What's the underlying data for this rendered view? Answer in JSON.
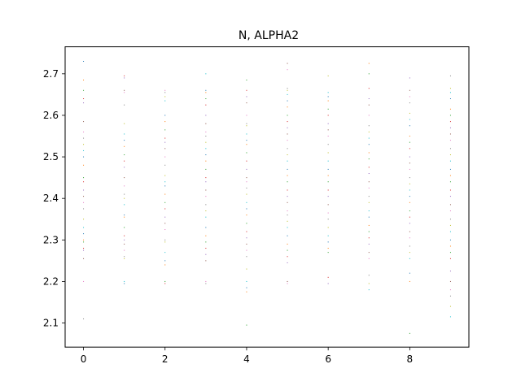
{
  "chart_data": {
    "type": "scatter",
    "title": "N, ALPHA2",
    "xlabel": "",
    "ylabel": "",
    "xlim": [
      -0.45,
      9.45
    ],
    "ylim": [
      2.042,
      2.765
    ],
    "xticks": [
      0,
      2,
      4,
      6,
      8
    ],
    "xtick_labels": [
      "0",
      "2",
      "4",
      "6",
      "8"
    ],
    "yticks": [
      2.1,
      2.2,
      2.3,
      2.4,
      2.5,
      2.6,
      2.7
    ],
    "ytick_labels": [
      "2.1",
      "2.2",
      "2.3",
      "2.4",
      "2.5",
      "2.6",
      "2.7"
    ],
    "grid": false,
    "legend": "none",
    "marker": "pixel",
    "colors": [
      "#1f77b4",
      "#ff7f0e",
      "#2ca02c",
      "#d62728",
      "#9467bd",
      "#8c564b",
      "#e377c2",
      "#7f7f7f",
      "#bcbd22",
      "#17becf"
    ],
    "columns": [
      {
        "x": 0,
        "y": [
          2.73,
          2.685,
          2.66,
          2.64,
          2.63,
          2.585,
          2.56,
          2.545,
          2.53,
          2.515,
          2.5,
          2.48,
          2.45,
          2.44,
          2.42,
          2.405,
          2.39,
          2.375,
          2.35,
          2.33,
          2.315,
          2.3,
          2.295,
          2.28,
          2.275,
          2.255,
          2.2,
          2.11
        ]
      },
      {
        "x": 1,
        "y": [
          2.695,
          2.69,
          2.66,
          2.655,
          2.625,
          2.58,
          2.555,
          2.54,
          2.525,
          2.505,
          2.49,
          2.475,
          2.45,
          2.43,
          2.41,
          2.4,
          2.385,
          2.36,
          2.355,
          2.33,
          2.31,
          2.3,
          2.29,
          2.275,
          2.26,
          2.255,
          2.2,
          2.195
        ]
      },
      {
        "x": 2,
        "y": [
          2.66,
          2.655,
          2.645,
          2.635,
          2.6,
          2.585,
          2.565,
          2.545,
          2.535,
          2.52,
          2.5,
          2.48,
          2.455,
          2.44,
          2.43,
          2.41,
          2.39,
          2.375,
          2.355,
          2.34,
          2.325,
          2.3,
          2.295,
          2.27,
          2.25,
          2.24,
          2.2,
          2.195
        ]
      },
      {
        "x": 3,
        "y": [
          2.7,
          2.66,
          2.655,
          2.64,
          2.625,
          2.6,
          2.58,
          2.56,
          2.55,
          2.535,
          2.52,
          2.505,
          2.49,
          2.47,
          2.45,
          2.44,
          2.42,
          2.405,
          2.385,
          2.37,
          2.355,
          2.33,
          2.31,
          2.295,
          2.28,
          2.265,
          2.25,
          2.2,
          2.195
        ]
      },
      {
        "x": 4,
        "y": [
          2.685,
          2.66,
          2.645,
          2.63,
          2.6,
          2.58,
          2.575,
          2.555,
          2.54,
          2.53,
          2.51,
          2.49,
          2.47,
          2.45,
          2.44,
          2.425,
          2.41,
          2.39,
          2.375,
          2.36,
          2.34,
          2.32,
          2.305,
          2.29,
          2.275,
          2.26,
          2.23,
          2.2,
          2.185,
          2.175,
          2.095
        ]
      },
      {
        "x": 5,
        "y": [
          2.725,
          2.71,
          2.665,
          2.66,
          2.65,
          2.635,
          2.62,
          2.6,
          2.585,
          2.57,
          2.555,
          2.54,
          2.52,
          2.505,
          2.49,
          2.47,
          2.455,
          2.44,
          2.42,
          2.405,
          2.39,
          2.37,
          2.36,
          2.345,
          2.33,
          2.31,
          2.29,
          2.275,
          2.26,
          2.245,
          2.2,
          2.195
        ]
      },
      {
        "x": 6,
        "y": [
          2.695,
          2.655,
          2.645,
          2.635,
          2.615,
          2.6,
          2.58,
          2.565,
          2.55,
          2.53,
          2.51,
          2.49,
          2.47,
          2.455,
          2.44,
          2.42,
          2.405,
          2.385,
          2.365,
          2.35,
          2.33,
          2.31,
          2.295,
          2.28,
          2.27,
          2.21,
          2.195
        ]
      },
      {
        "x": 7,
        "y": [
          2.725,
          2.7,
          2.665,
          2.64,
          2.625,
          2.6,
          2.575,
          2.56,
          2.545,
          2.53,
          2.51,
          2.495,
          2.475,
          2.46,
          2.44,
          2.425,
          2.405,
          2.39,
          2.37,
          2.355,
          2.335,
          2.32,
          2.305,
          2.29,
          2.27,
          2.255,
          2.215,
          2.195,
          2.18
        ]
      },
      {
        "x": 8,
        "y": [
          2.69,
          2.66,
          2.645,
          2.63,
          2.605,
          2.59,
          2.575,
          2.55,
          2.535,
          2.52,
          2.5,
          2.485,
          2.47,
          2.45,
          2.435,
          2.42,
          2.405,
          2.39,
          2.37,
          2.355,
          2.34,
          2.32,
          2.305,
          2.285,
          2.27,
          2.255,
          2.22,
          2.2,
          2.075
        ]
      },
      {
        "x": 9,
        "y": [
          2.695,
          2.665,
          2.655,
          2.64,
          2.615,
          2.6,
          2.585,
          2.57,
          2.555,
          2.54,
          2.52,
          2.505,
          2.49,
          2.47,
          2.455,
          2.44,
          2.42,
          2.405,
          2.385,
          2.37,
          2.35,
          2.335,
          2.32,
          2.3,
          2.285,
          2.27,
          2.255,
          2.225,
          2.2,
          2.18,
          2.165,
          2.14,
          2.115
        ]
      }
    ]
  }
}
